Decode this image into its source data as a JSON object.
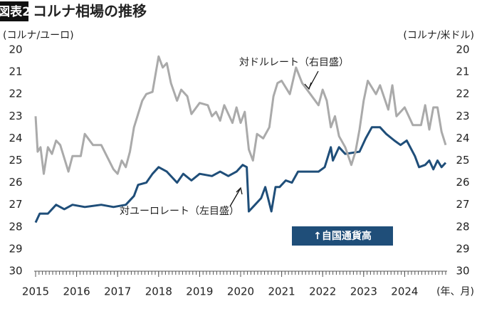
{
  "chart_data": {
    "type": "line",
    "title_badge": "図表2",
    "title": "コルナ相場の推移",
    "y_label": "(コルナ/ユーロ)",
    "y2_label": "(コルナ/米ドル)",
    "x_label": "(年、月)",
    "annotations": [
      "対ドルレート（右目盛）",
      "対ユーロレート（左目盛）",
      "↑自国通貨高"
    ],
    "xlim": [
      2015,
      2025
    ],
    "xticks": [
      2015,
      2016,
      2017,
      2018,
      2019,
      2020,
      2021,
      2022,
      2023,
      2024
    ],
    "ylim": [
      20,
      30
    ],
    "yticks": [
      20,
      21,
      22,
      23,
      24,
      25,
      26,
      27,
      28,
      29,
      30
    ],
    "y2lim": [
      20,
      30
    ],
    "y2ticks": [
      20,
      21,
      22,
      23,
      24,
      25,
      26,
      27,
      28,
      29,
      30
    ],
    "inverted": true,
    "grid": false,
    "series": [
      {
        "name": "対ユーロレート",
        "color": "#1f4e79",
        "x": [
          2015,
          2015.1,
          2015.3,
          2015.5,
          2015.7,
          2015.9,
          2016.2,
          2016.6,
          2016.9,
          2017.2,
          2017.4,
          2017.5,
          2017.7,
          2017.85,
          2018.0,
          2018.2,
          2018.45,
          2018.6,
          2018.8,
          2019.0,
          2019.3,
          2019.5,
          2019.7,
          2019.9,
          2020.05,
          2020.15,
          2020.2,
          2020.35,
          2020.5,
          2020.6,
          2020.75,
          2020.85,
          2020.95,
          2021.1,
          2021.25,
          2021.4,
          2021.6,
          2021.9,
          2022.05,
          2022.2,
          2022.25,
          2022.4,
          2022.55,
          2022.9,
          2023.05,
          2023.2,
          2023.4,
          2023.55,
          2023.75,
          2023.9,
          2024.05,
          2024.25,
          2024.35,
          2024.5,
          2024.6,
          2024.7,
          2024.8,
          2024.9,
          2025.0
        ],
        "values": [
          27.8,
          27.4,
          27.4,
          27.0,
          27.2,
          27.0,
          27.1,
          27.0,
          27.1,
          27.0,
          26.6,
          26.1,
          26.0,
          25.6,
          25.3,
          25.5,
          26.0,
          25.6,
          25.9,
          25.6,
          25.7,
          25.5,
          25.7,
          25.5,
          25.2,
          25.3,
          27.3,
          27.0,
          26.7,
          26.2,
          27.3,
          26.2,
          26.2,
          25.9,
          26.0,
          25.5,
          25.5,
          25.5,
          25.3,
          24.4,
          25.0,
          24.4,
          24.7,
          24.6,
          24.0,
          23.5,
          23.5,
          23.8,
          24.1,
          24.3,
          24.1,
          24.8,
          25.3,
          25.2,
          25.0,
          25.4,
          25.0,
          25.3,
          25.1
        ]
      },
      {
        "name": "対ドルレート",
        "color": "#aaaaaa",
        "axis": "y2",
        "x": [
          2015,
          2015.05,
          2015.12,
          2015.2,
          2015.3,
          2015.4,
          2015.5,
          2015.6,
          2015.8,
          2015.9,
          2016.1,
          2016.2,
          2016.4,
          2016.6,
          2016.9,
          2017.0,
          2017.1,
          2017.2,
          2017.3,
          2017.4,
          2017.6,
          2017.7,
          2017.85,
          2018.0,
          2018.1,
          2018.2,
          2018.3,
          2018.45,
          2018.55,
          2018.7,
          2018.8,
          2019.0,
          2019.2,
          2019.3,
          2019.4,
          2019.5,
          2019.6,
          2019.8,
          2019.9,
          2020.0,
          2020.1,
          2020.2,
          2020.3,
          2020.4,
          2020.55,
          2020.7,
          2020.8,
          2020.9,
          2021.0,
          2021.2,
          2021.35,
          2021.5,
          2021.7,
          2021.9,
          2022.0,
          2022.1,
          2022.2,
          2022.3,
          2022.4,
          2022.55,
          2022.7,
          2022.8,
          2022.9,
          2023.0,
          2023.1,
          2023.3,
          2023.4,
          2023.6,
          2023.7,
          2023.8,
          2024.0,
          2024.2,
          2024.4,
          2024.5,
          2024.6,
          2024.7,
          2024.8,
          2024.9,
          2025.0
        ],
        "values": [
          23.0,
          24.6,
          24.4,
          25.6,
          24.4,
          24.7,
          24.1,
          24.3,
          25.5,
          24.8,
          24.8,
          23.8,
          24.3,
          24.3,
          25.4,
          25.6,
          25.0,
          25.3,
          24.6,
          23.5,
          22.3,
          22.0,
          21.9,
          20.3,
          20.8,
          20.6,
          21.5,
          22.3,
          21.8,
          22.1,
          22.9,
          22.4,
          22.5,
          23.0,
          22.8,
          23.2,
          22.5,
          23.3,
          22.6,
          23.3,
          22.8,
          24.5,
          25.0,
          23.8,
          24.0,
          23.5,
          22.1,
          21.5,
          21.4,
          22.0,
          20.8,
          21.5,
          22.0,
          22.5,
          21.8,
          22.3,
          23.5,
          23.0,
          23.9,
          24.4,
          25.2,
          24.6,
          23.6,
          22.3,
          21.4,
          22.0,
          21.6,
          22.7,
          21.6,
          23.0,
          22.6,
          23.4,
          23.4,
          22.5,
          23.6,
          22.6,
          22.6,
          23.7,
          24.3
        ]
      }
    ]
  }
}
